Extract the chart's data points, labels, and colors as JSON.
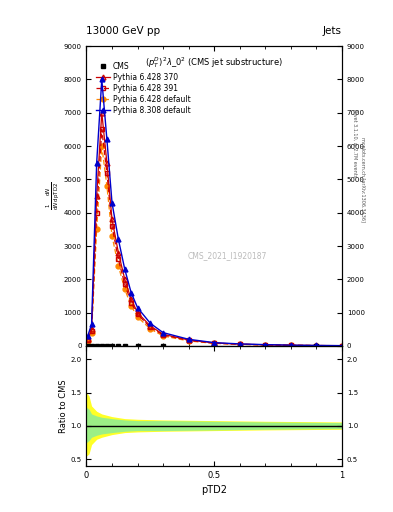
{
  "title_top": "13000 GeV pp",
  "title_right": "Jets",
  "plot_title": "$(p_T^D)^2\\lambda\\_0^2$ (CMS jet substructure)",
  "watermark": "CMS_2021_I1920187",
  "xlabel": "pTD2",
  "ratio_ylabel": "Ratio to CMS",
  "x_data": [
    0.005,
    0.02,
    0.04,
    0.06,
    0.08,
    0.1,
    0.125,
    0.15,
    0.175,
    0.2,
    0.25,
    0.3,
    0.4,
    0.5,
    0.6,
    0.7,
    0.8,
    0.9,
    1.0
  ],
  "pythia6_370": [
    200,
    500,
    4500,
    7000,
    5500,
    3800,
    2800,
    2000,
    1400,
    1000,
    600,
    350,
    180,
    90,
    55,
    35,
    22,
    14,
    9
  ],
  "pythia6_391": [
    180,
    450,
    4000,
    6500,
    5200,
    3600,
    2600,
    1850,
    1300,
    950,
    560,
    330,
    165,
    85,
    52,
    33,
    21,
    13,
    8
  ],
  "pythia6_default": [
    150,
    400,
    3500,
    6000,
    4800,
    3300,
    2400,
    1700,
    1200,
    870,
    510,
    300,
    150,
    78,
    48,
    30,
    19,
    12,
    7
  ],
  "pythia8_default": [
    300,
    650,
    5500,
    8000,
    6200,
    4300,
    3200,
    2300,
    1600,
    1150,
    680,
    400,
    200,
    100,
    62,
    40,
    25,
    16,
    10
  ],
  "cms_x": [
    0.005,
    0.02,
    0.04,
    0.06,
    0.08,
    0.1,
    0.125,
    0.15,
    0.2,
    0.3,
    0.5,
    0.7,
    0.9
  ],
  "cms_y": [
    0,
    0,
    0,
    0,
    0,
    0,
    0,
    0,
    0,
    0,
    0,
    0,
    0
  ],
  "ylim": [
    0,
    9000
  ],
  "yticks": [
    0,
    1000,
    2000,
    3000,
    4000,
    5000,
    6000,
    7000,
    8000,
    9000
  ],
  "ratio_ylim": [
    0.4,
    2.2
  ],
  "ratio_yticks": [
    0.5,
    1.0,
    1.5,
    2.0
  ],
  "xlim": [
    0,
    1.0
  ],
  "colors": {
    "cms": "#000000",
    "p6_370": "#cc0000",
    "p6_391": "#cc0000",
    "p6_default": "#ff8800",
    "p8_default": "#0000cc"
  },
  "band_yellow_x": [
    0.0,
    0.01,
    0.02,
    0.04,
    0.06,
    0.08,
    0.1,
    0.15,
    0.2,
    0.3,
    0.5,
    0.7,
    1.0
  ],
  "band_yellow_low": [
    0.55,
    0.58,
    0.72,
    0.8,
    0.83,
    0.85,
    0.87,
    0.9,
    0.91,
    0.92,
    0.93,
    0.94,
    0.95
  ],
  "band_yellow_high": [
    1.5,
    1.45,
    1.3,
    1.22,
    1.18,
    1.16,
    1.14,
    1.11,
    1.1,
    1.09,
    1.08,
    1.07,
    1.06
  ],
  "band_green_x": [
    0.0,
    0.01,
    0.02,
    0.04,
    0.06,
    0.08,
    0.1,
    0.15,
    0.2,
    0.3,
    0.5,
    0.7,
    1.0
  ],
  "band_green_low": [
    0.75,
    0.78,
    0.83,
    0.86,
    0.88,
    0.89,
    0.9,
    0.92,
    0.93,
    0.93,
    0.94,
    0.95,
    0.96
  ],
  "band_green_high": [
    1.28,
    1.25,
    1.18,
    1.15,
    1.13,
    1.12,
    1.11,
    1.09,
    1.08,
    1.08,
    1.07,
    1.06,
    1.05
  ]
}
